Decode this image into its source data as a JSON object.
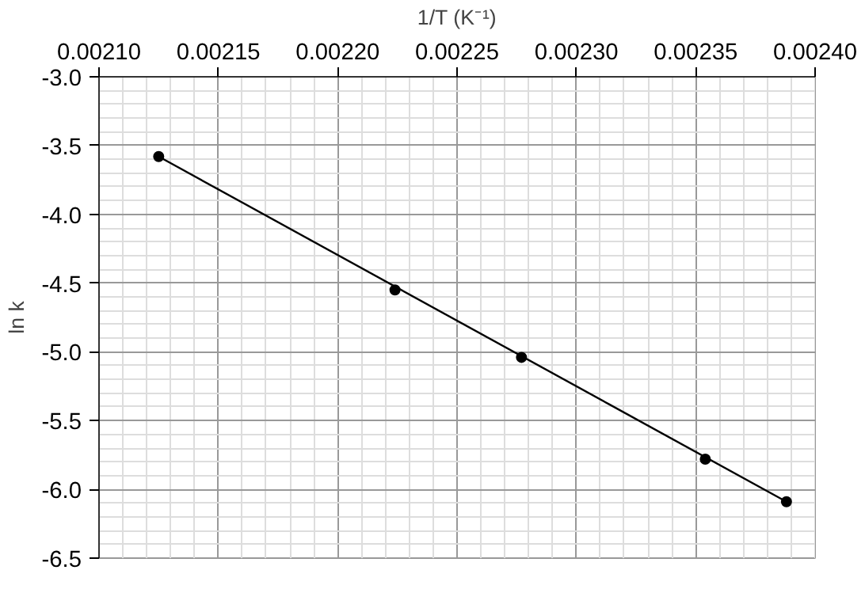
{
  "chart_data": {
    "type": "scatter",
    "xlabel": "1/T (K⁻¹)",
    "ylabel": "ln k",
    "x": [
      0.002125,
      0.002224,
      0.002277,
      0.002354,
      0.002388
    ],
    "series": [
      {
        "color": "#000000",
        "values": [
          -3.58,
          -4.55,
          -5.04,
          -5.78,
          -6.09
        ],
        "marker": "circle"
      },
      {
        "type": "line",
        "color": "#000000",
        "x": [
          0.002125,
          0.002388
        ],
        "values": [
          -3.58,
          -6.09
        ],
        "marker": "none"
      }
    ],
    "xlim": [
      0.0021,
      0.0024
    ],
    "ylim": [
      -6.5,
      -3.0
    ],
    "xticks": [
      {
        "value": 0.0021,
        "label": "0.00210"
      },
      {
        "value": 0.00215,
        "label": "0.00215"
      },
      {
        "value": 0.0022,
        "label": "0.00220"
      },
      {
        "value": 0.00225,
        "label": "0.00225"
      },
      {
        "value": 0.0023,
        "label": "0.00230"
      },
      {
        "value": 0.00235,
        "label": "0.00235"
      },
      {
        "value": 0.0024,
        "label": "0.00240"
      }
    ],
    "yticks": [
      {
        "value": -3.0,
        "label": "-3.0"
      },
      {
        "value": -3.5,
        "label": "-3.5"
      },
      {
        "value": -4.0,
        "label": "-4.0"
      },
      {
        "value": -4.5,
        "label": "-4.5"
      },
      {
        "value": -5.0,
        "label": "-5.0"
      },
      {
        "value": -5.5,
        "label": "-5.5"
      },
      {
        "value": -6.0,
        "label": "-6.0"
      },
      {
        "value": -6.5,
        "label": "-6.5"
      }
    ],
    "grid": true
  }
}
